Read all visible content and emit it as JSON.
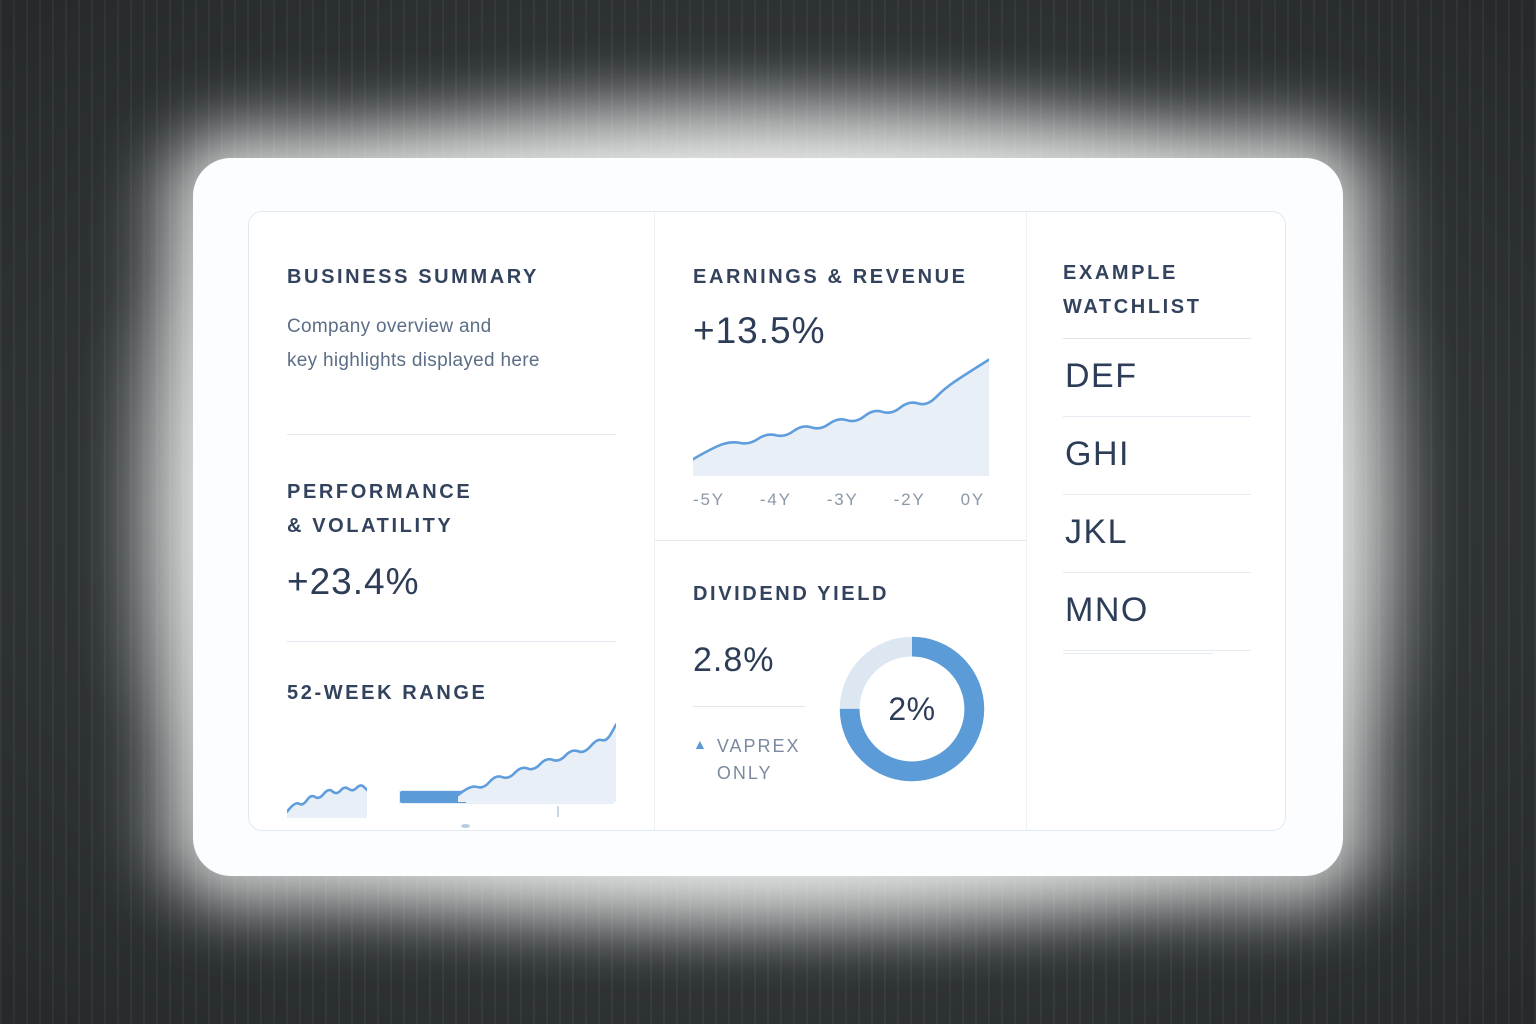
{
  "theme": {
    "accent_blue": "#5b9bd8",
    "fill_light": "#e9eff7",
    "text_dark": "#2e3d57",
    "text_gray": "#5c6e86",
    "text_muted": "#8b98a9",
    "divider": "#e2e8f0"
  },
  "business_summary": {
    "title": "BUSINESS SUMMARY",
    "body_line1": "Company overview and",
    "body_line2": "key highlights displayed here"
  },
  "performance": {
    "title_line1": "PERFORMANCE",
    "title_line2": "& VOLATILITY",
    "value": "+23.4%"
  },
  "week_range": {
    "title": "52-WEEK RANGE"
  },
  "earnings": {
    "title": "EARNINGS & REVENUE",
    "value": "+13.5%",
    "x_labels": [
      "-5Y",
      "-4Y",
      "-3Y",
      "-2Y",
      "0Y"
    ]
  },
  "dividend": {
    "title": "DIVIDEND YIELD",
    "value": "2.8%",
    "donut_label": "2%",
    "note_line1": "VAPREX",
    "note_line2": "ONLY"
  },
  "watchlist": {
    "title_line1": "EXAMPLE",
    "title_line2": "WATCHLIST",
    "items": [
      "DEF",
      "GHI",
      "JKL",
      "MNO"
    ]
  },
  "chart_data": [
    {
      "type": "area",
      "name": "earnings-revenue-trend",
      "trend_label": "+13.5%",
      "x_ticks": [
        "-5Y",
        "-4Y",
        "-3Y",
        "-2Y",
        "0Y"
      ],
      "points": [
        [
          0,
          86
        ],
        [
          7,
          76
        ],
        [
          13,
          71
        ],
        [
          19,
          74
        ],
        [
          25,
          64
        ],
        [
          31,
          68
        ],
        [
          37,
          57
        ],
        [
          43,
          62
        ],
        [
          49,
          51
        ],
        [
          55,
          56
        ],
        [
          61,
          44
        ],
        [
          67,
          49
        ],
        [
          73,
          37
        ],
        [
          79,
          42
        ],
        [
          85,
          27
        ],
        [
          91,
          17
        ],
        [
          100,
          3
        ]
      ]
    },
    {
      "type": "donut",
      "name": "dividend-yield-donut",
      "center_label": "2%",
      "fill_pct": 75
    },
    {
      "type": "area",
      "name": "52-week-sparkline-left",
      "points": [
        [
          0,
          88
        ],
        [
          10,
          68
        ],
        [
          20,
          77
        ],
        [
          30,
          54
        ],
        [
          40,
          65
        ],
        [
          52,
          42
        ],
        [
          62,
          56
        ],
        [
          72,
          38
        ],
        [
          82,
          50
        ],
        [
          92,
          34
        ],
        [
          100,
          46
        ]
      ]
    },
    {
      "type": "area",
      "name": "52-week-sparkline-right",
      "points": [
        [
          0,
          92
        ],
        [
          8,
          80
        ],
        [
          16,
          85
        ],
        [
          24,
          68
        ],
        [
          32,
          74
        ],
        [
          40,
          58
        ],
        [
          48,
          64
        ],
        [
          56,
          48
        ],
        [
          64,
          54
        ],
        [
          72,
          38
        ],
        [
          80,
          44
        ],
        [
          88,
          26
        ],
        [
          94,
          30
        ],
        [
          100,
          10
        ]
      ]
    },
    {
      "type": "bar",
      "name": "52-week-range-bar",
      "fill_pct": 31
    }
  ]
}
